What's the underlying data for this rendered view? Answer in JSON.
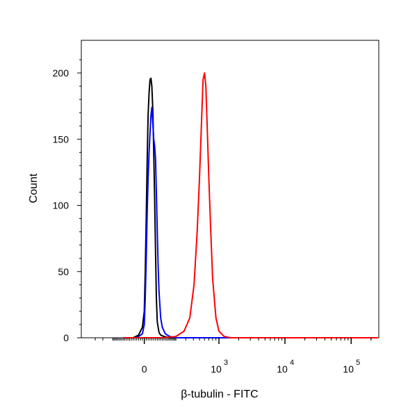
{
  "chart_data": {
    "type": "line",
    "xlabel": "β-tubulin - FITC",
    "ylabel": "Count",
    "x_scale": "biexponential",
    "x_ticks": [
      {
        "value": 0,
        "base": "0",
        "exp": ""
      },
      {
        "value": 1000,
        "base": "10",
        "exp": "3"
      },
      {
        "value": 10000,
        "base": "10",
        "exp": "4"
      },
      {
        "value": 100000,
        "base": "10",
        "exp": "5"
      }
    ],
    "ylim": [
      0,
      220
    ],
    "y_ticks": [
      "0",
      "50",
      "100",
      "150",
      "200"
    ],
    "grid": false,
    "legend": "none",
    "series": [
      {
        "color": "#000000",
        "x": [
          -120,
          -60,
          -30,
          -10,
          0,
          5,
          10,
          15,
          20,
          25,
          30,
          35,
          40,
          45,
          50,
          55,
          60,
          65,
          70,
          80,
          90,
          110,
          150,
          200,
          400,
          1000,
          10000,
          100000,
          250000
        ],
        "y": [
          0,
          0,
          2,
          8,
          20,
          50,
          90,
          135,
          168,
          185,
          195,
          196,
          190,
          172,
          140,
          105,
          65,
          30,
          12,
          4,
          2,
          1,
          0,
          0,
          0,
          0,
          0,
          0,
          0
        ]
      },
      {
        "color": "#0000ff",
        "x": [
          -120,
          -40,
          -10,
          0,
          5,
          10,
          15,
          20,
          25,
          30,
          35,
          40,
          45,
          50,
          55,
          60,
          65,
          70,
          75,
          80,
          90,
          100,
          120,
          150,
          200,
          400,
          1000,
          10000,
          100000,
          250000
        ],
        "y": [
          0,
          0,
          3,
          10,
          30,
          60,
          95,
          120,
          140,
          155,
          168,
          174,
          162,
          150,
          145,
          135,
          110,
          80,
          55,
          35,
          15,
          8,
          3,
          1,
          0,
          0,
          0,
          0,
          0,
          0
        ]
      },
      {
        "color": "#ff0000",
        "x": [
          -120,
          0,
          100,
          200,
          280,
          350,
          410,
          460,
          500,
          540,
          570,
          600,
          630,
          660,
          700,
          750,
          800,
          900,
          1000,
          1200,
          1500,
          2000,
          10000,
          100000,
          250000
        ],
        "y": [
          0,
          0,
          0,
          1,
          5,
          15,
          40,
          80,
          120,
          165,
          195,
          200,
          190,
          160,
          120,
          80,
          45,
          15,
          5,
          1,
          0,
          0,
          0,
          0,
          0
        ]
      }
    ]
  }
}
